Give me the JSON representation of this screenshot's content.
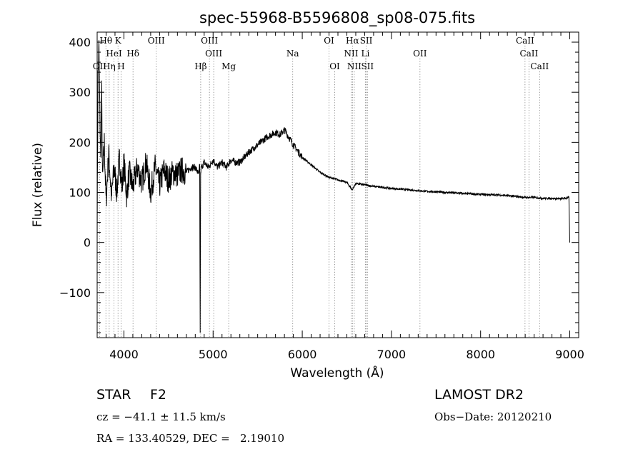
{
  "chart_data": {
    "type": "line",
    "title": "spec-55968-B5596808_sp08-075.fits",
    "xlabel": "Wavelength (Å)",
    "ylabel": "Flux (relative)",
    "xlim": [
      3700,
      9100
    ],
    "ylim": [
      -190,
      420
    ],
    "xticks": [
      4000,
      5000,
      6000,
      7000,
      8000,
      9000
    ],
    "yticks": [
      -100,
      0,
      100,
      200,
      300,
      400
    ],
    "xtick_labels": [
      "4000",
      "5000",
      "6000",
      "7000",
      "8000",
      "9000"
    ],
    "ytick_labels": [
      "−100",
      "0",
      "100",
      "200",
      "300",
      "400"
    ],
    "grid": false,
    "series": [
      {
        "x": [
          3700,
          3710,
          3720,
          3730,
          3740,
          3750,
          3760,
          3780,
          3800,
          3830,
          3860,
          3890,
          3920,
          3950,
          3980,
          4000,
          4030,
          4060,
          4100,
          4150,
          4200,
          4250,
          4300,
          4350,
          4400,
          4450,
          4500,
          4550,
          4600,
          4650,
          4700,
          4750,
          4800,
          4840,
          4850,
          4855,
          4860,
          4870,
          4900,
          4950,
          5000,
          5050,
          5100,
          5150,
          5200,
          5250,
          5300,
          5400,
          5500,
          5600,
          5700,
          5750,
          5800,
          5850,
          5900,
          6000,
          6100,
          6200,
          6300,
          6400,
          6500,
          6560,
          6600,
          6700,
          6800,
          6900,
          7000,
          7200,
          7400,
          7600,
          7800,
          8000,
          8200,
          8400,
          8500,
          8600,
          8700,
          8800,
          8900,
          8990,
          9000
        ],
        "y": [
          30,
          330,
          390,
          260,
          160,
          300,
          120,
          200,
          80,
          180,
          90,
          150,
          100,
          170,
          110,
          160,
          95,
          140,
          110,
          150,
          120,
          160,
          100,
          150,
          115,
          145,
          125,
          140,
          135,
          145,
          140,
          150,
          150,
          135,
          155,
          -180,
          140,
          150,
          160,
          150,
          165,
          150,
          160,
          150,
          165,
          160,
          160,
          180,
          195,
          210,
          220,
          215,
          225,
          210,
          195,
          170,
          155,
          140,
          130,
          125,
          120,
          105,
          118,
          115,
          112,
          110,
          108,
          105,
          102,
          100,
          98,
          96,
          95,
          92,
          90,
          90,
          88,
          88,
          87,
          90,
          0
        ]
      }
    ],
    "lines": [
      {
        "label": "Hθ",
        "x": 3798,
        "row": 0
      },
      {
        "label": "K",
        "x": 3934,
        "row": 0
      },
      {
        "label": "OIII",
        "x": 4363,
        "row": 0
      },
      {
        "label": "OIII",
        "x": 4959,
        "row": 0
      },
      {
        "label": "OI",
        "x": 6300,
        "row": 0
      },
      {
        "label": "Hα",
        "x": 6563,
        "row": 0
      },
      {
        "label": "SII",
        "x": 6717,
        "row": 0
      },
      {
        "label": "CaII",
        "x": 8498,
        "row": 0
      },
      {
        "label": "HeI",
        "x": 3889,
        "row": 1
      },
      {
        "label": "Hδ",
        "x": 4102,
        "row": 1
      },
      {
        "label": "OIII",
        "x": 5007,
        "row": 1
      },
      {
        "label": "Na",
        "x": 5893,
        "row": 1
      },
      {
        "label": "NII",
        "x": 6548,
        "row": 1
      },
      {
        "label": "Li",
        "x": 6708,
        "row": 1
      },
      {
        "label": "OII",
        "x": 7320,
        "row": 1
      },
      {
        "label": "CaII",
        "x": 8542,
        "row": 1
      },
      {
        "label": "OII",
        "x": 3727,
        "row": 2
      },
      {
        "label": "Hη",
        "x": 3835,
        "row": 2
      },
      {
        "label": "H",
        "x": 3968,
        "row": 2
      },
      {
        "label": "Hβ",
        "x": 4861,
        "row": 2
      },
      {
        "label": "Mg",
        "x": 5175,
        "row": 2
      },
      {
        "label": "OI",
        "x": 6364,
        "row": 2
      },
      {
        "label": "NII",
        "x": 6583,
        "row": 2
      },
      {
        "label": "SII",
        "x": 6731,
        "row": 2
      },
      {
        "label": "CaII",
        "x": 8662,
        "row": 2
      }
    ]
  },
  "info": {
    "object_class": "STAR",
    "subclass": "F2",
    "redshift": "cz = −41.1 ± 11.5 km/s",
    "coords": "RA = 133.40529, DEC =   2.19010",
    "survey": "LAMOST DR2",
    "obs_date": "Obs−Date: 20120210"
  }
}
